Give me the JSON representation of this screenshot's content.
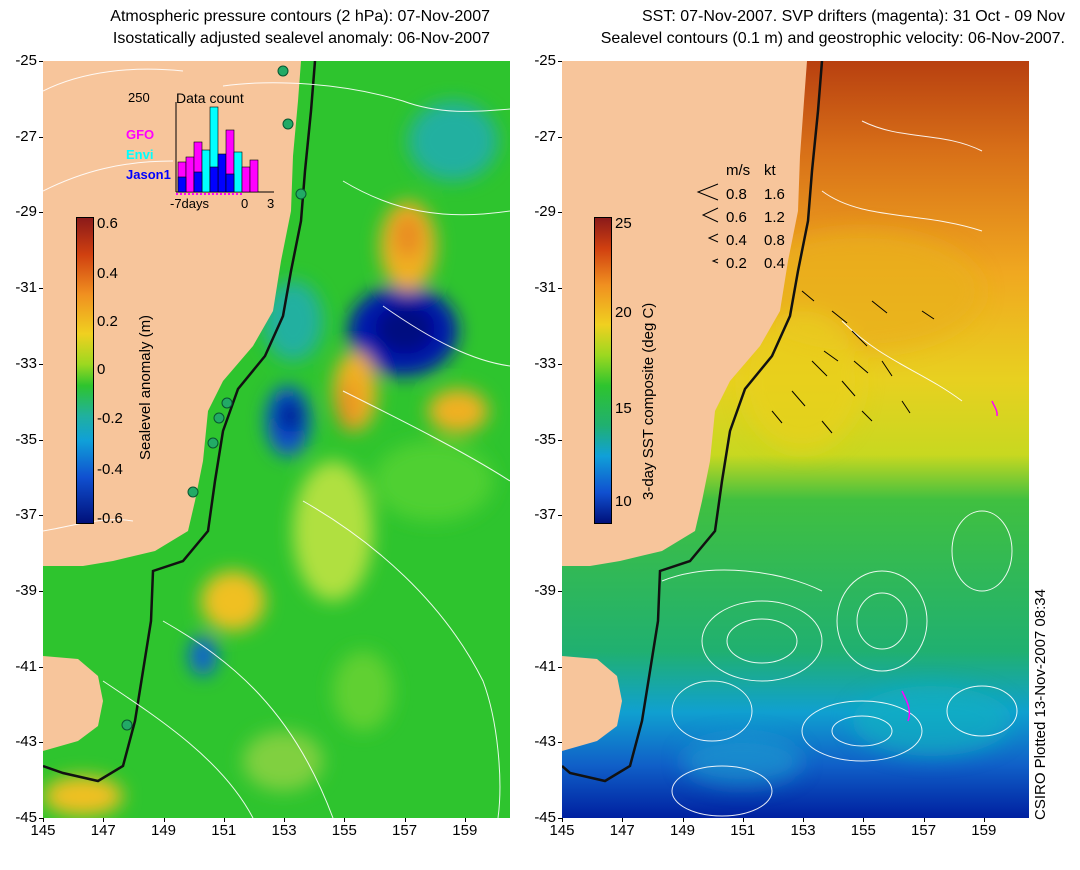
{
  "titles": {
    "left_line1": "Atmospheric pressure contours (2 hPa): 07-Nov-2007",
    "left_line2": "Isostatically adjusted sealevel anomaly: 06-Nov-2007",
    "right_line1": "SST: 07-Nov-2007. SVP drifters (magenta): 31 Oct - 09 Nov",
    "right_line2": "Sealevel contours (0.1 m) and geostrophic velocity: 06-Nov-2007."
  },
  "y_ticks": [
    "-25",
    "-27",
    "-29",
    "-31",
    "-33",
    "-35",
    "-37",
    "-39",
    "-41",
    "-43",
    "-45"
  ],
  "x_ticks": [
    "145",
    "147",
    "149",
    "151",
    "153",
    "155",
    "157",
    "159"
  ],
  "left_colorbar": {
    "title": "Sealevel anomaly (m)",
    "labels": [
      "0.6",
      "0.4",
      "0.2",
      "0",
      "-0.2",
      "-0.4",
      "-0.6"
    ]
  },
  "right_colorbar": {
    "title": "3-day SST composite (deg C)",
    "labels": [
      "25",
      "20",
      "15",
      "10"
    ]
  },
  "data_count_inset": {
    "max_label": "250",
    "title": "Data count",
    "legend": [
      {
        "label": "GFO",
        "color": "#ff00ff"
      },
      {
        "label": "Envi",
        "color": "#00ffff"
      },
      {
        "label": "Jason1",
        "color": "#0000ff"
      }
    ],
    "x_labels": [
      "-7days",
      "0",
      "3"
    ]
  },
  "velocity_legend": {
    "header_ms": "m/s",
    "header_kt": "kt",
    "rows": [
      {
        "ms": "0.8",
        "kt": "1.6"
      },
      {
        "ms": "0.6",
        "kt": "1.2"
      },
      {
        "ms": "0.4",
        "kt": "0.8"
      },
      {
        "ms": "0.2",
        "kt": "0.4"
      }
    ]
  },
  "credit": "CSIRO Plotted 13-Nov-2007 08:34",
  "colors": {
    "land": "#f7c59b",
    "ocean_green": "#2ec42e",
    "sst_warm": "#e8c000",
    "sst_hot": "#c05000",
    "sst_cold": "#0030b0",
    "anomaly_high": "#f0a020",
    "anomaly_low": "#0010a0"
  }
}
